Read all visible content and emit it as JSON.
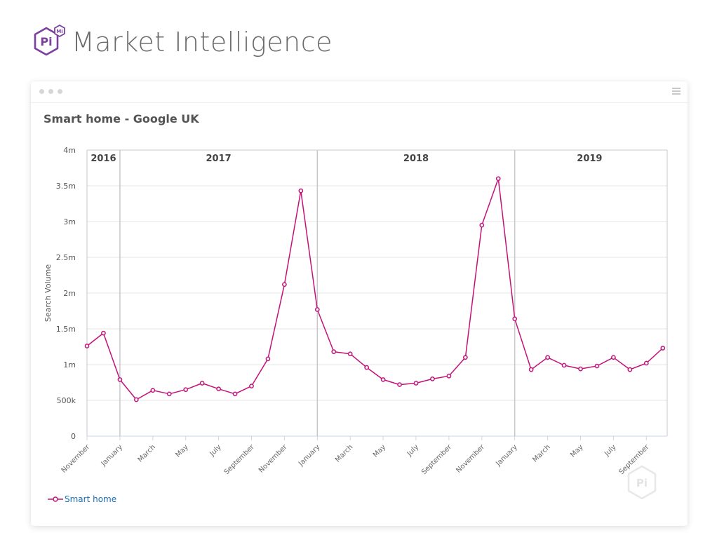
{
  "brand": {
    "logo_text": "Pi",
    "logo_badge": "Mi",
    "name": "Market Intelligence"
  },
  "window": {
    "controls": [
      "dot",
      "dot",
      "dot"
    ],
    "menu_icon": "hamburger-icon"
  },
  "colors": {
    "series": "#c2127a",
    "grid": "#e6e6e6",
    "divider": "#c8c8cc",
    "logo": "#7b3fa0"
  },
  "chart_data": {
    "type": "line",
    "title": "Smart home - Google UK",
    "xlabel": "",
    "ylabel": "Search Volume",
    "ylim": [
      0,
      4000000
    ],
    "yticks": [
      0,
      500000,
      1000000,
      1500000,
      2000000,
      2500000,
      3000000,
      3500000,
      4000000
    ],
    "ytick_labels": [
      "0",
      "500k",
      "1m",
      "1.5m",
      "2m",
      "2.5m",
      "3m",
      "3.5m",
      "4m"
    ],
    "x": [
      "2016-11",
      "2016-12",
      "2017-01",
      "2017-02",
      "2017-03",
      "2017-04",
      "2017-05",
      "2017-06",
      "2017-07",
      "2017-08",
      "2017-09",
      "2017-10",
      "2017-11",
      "2017-12",
      "2018-01",
      "2018-02",
      "2018-03",
      "2018-04",
      "2018-05",
      "2018-06",
      "2018-07",
      "2018-08",
      "2018-09",
      "2018-10",
      "2018-11",
      "2018-12",
      "2019-01",
      "2019-02",
      "2019-03",
      "2019-04",
      "2019-05",
      "2019-06",
      "2019-07",
      "2019-08",
      "2019-09",
      "2019-10"
    ],
    "xtick_labels": [
      {
        "label": "November",
        "index": 0
      },
      {
        "label": "January",
        "index": 2
      },
      {
        "label": "March",
        "index": 4
      },
      {
        "label": "May",
        "index": 6
      },
      {
        "label": "July",
        "index": 8
      },
      {
        "label": "September",
        "index": 10
      },
      {
        "label": "November",
        "index": 12
      },
      {
        "label": "January",
        "index": 14
      },
      {
        "label": "March",
        "index": 16
      },
      {
        "label": "May",
        "index": 18
      },
      {
        "label": "July",
        "index": 20
      },
      {
        "label": "September",
        "index": 22
      },
      {
        "label": "November",
        "index": 24
      },
      {
        "label": "January",
        "index": 26
      },
      {
        "label": "March",
        "index": 28
      },
      {
        "label": "May",
        "index": 30
      },
      {
        "label": "July",
        "index": 32
      },
      {
        "label": "September",
        "index": 34
      }
    ],
    "year_bands": [
      {
        "label": "2016",
        "start": 0,
        "end": 2
      },
      {
        "label": "2017",
        "start": 2,
        "end": 14
      },
      {
        "label": "2018",
        "start": 14,
        "end": 26
      },
      {
        "label": "2019",
        "start": 26,
        "end": 35.1
      }
    ],
    "series": [
      {
        "name": "Smart home",
        "values": [
          1260000,
          1440000,
          790000,
          510000,
          640000,
          590000,
          650000,
          740000,
          660000,
          590000,
          700000,
          1080000,
          2120000,
          3430000,
          1770000,
          1180000,
          1150000,
          960000,
          790000,
          720000,
          740000,
          800000,
          840000,
          1100000,
          2950000,
          3600000,
          1640000,
          930000,
          1100000,
          990000,
          940000,
          980000,
          1100000,
          930000,
          1020000,
          1230000
        ]
      }
    ],
    "grid": true,
    "legend": "bottom-left"
  }
}
